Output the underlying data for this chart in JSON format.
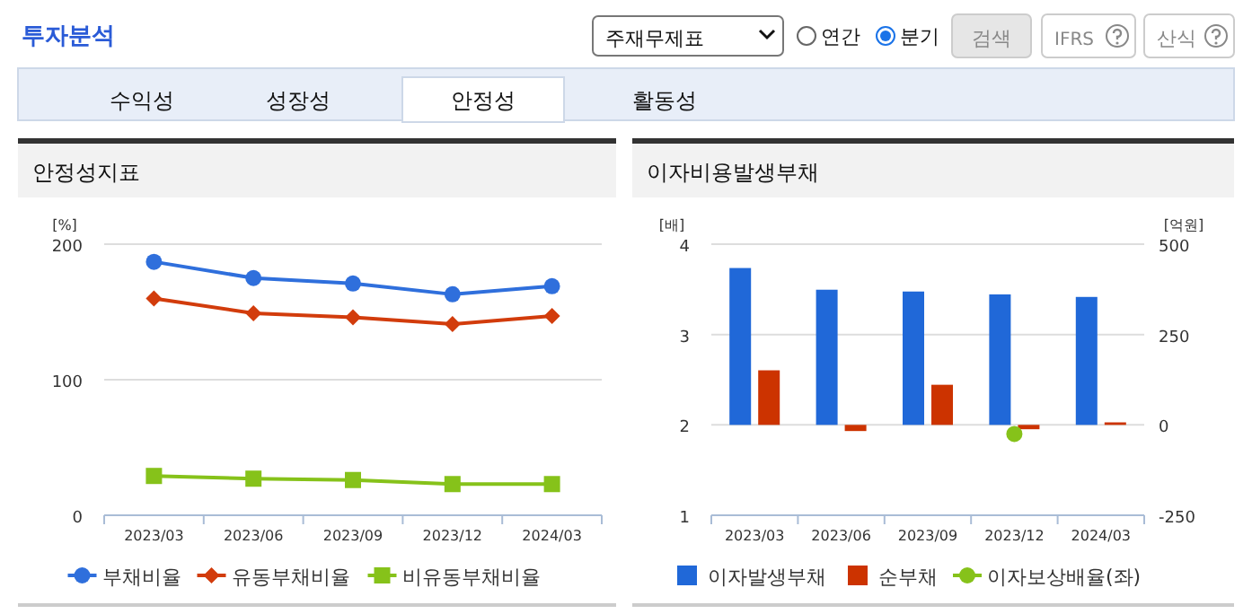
{
  "chart_data": [
    {
      "type": "other",
      "title": "투자분석",
      "annotations": [
        "주재무제표",
        "연간",
        "분기",
        "검색",
        "IFRS",
        "산식",
        "수익성",
        "성장성",
        "안정성",
        "활동성"
      ]
    },
    {
      "type": "line",
      "title": "안정성지표",
      "ylabel": "[%]",
      "categories": [
        "2023/03",
        "2023/06",
        "2023/09",
        "2023/12",
        "2024/03"
      ],
      "ylim": [
        0,
        200
      ],
      "yticks": [
        0,
        100,
        200
      ],
      "grid": "y",
      "legend": "bottom",
      "series": [
        {
          "name": "부채비율",
          "color": "#2f6fdc",
          "marker": "circle",
          "values": [
            187,
            175,
            171,
            163,
            169
          ]
        },
        {
          "name": "유동부채비율",
          "color": "#d23c0c",
          "marker": "diamond",
          "values": [
            160,
            149,
            146,
            141,
            147
          ]
        },
        {
          "name": "비유동부채비율",
          "color": "#86c21a",
          "marker": "square",
          "values": [
            29,
            27,
            26,
            23,
            23
          ]
        }
      ]
    },
    {
      "type": "bar",
      "title": "이자비용발생부채",
      "ylabel": "[배]",
      "y2label": "[억원]",
      "categories": [
        "2023/03",
        "2023/06",
        "2023/09",
        "2023/12",
        "2024/03"
      ],
      "ylim": [
        1,
        4
      ],
      "yticks": [
        1,
        2,
        3,
        4
      ],
      "y2lim": [
        -250,
        500
      ],
      "y2ticks": [
        -250,
        0,
        250,
        500
      ],
      "grid": "y",
      "legend": "bottom",
      "series": [
        {
          "name": "이자발생부채",
          "color": "#2068d8",
          "axis": "y2",
          "values": [
            434,
            374,
            369,
            361,
            354
          ]
        },
        {
          "name": "순부채",
          "color": "#cc3300",
          "axis": "y2",
          "values": [
            151,
            -17,
            111,
            -12,
            7
          ]
        },
        {
          "name": "이자보상배율(좌)",
          "type": "line",
          "marker": "circle",
          "color": "#86c21a",
          "values": [
            null,
            null,
            null,
            1.9,
            null
          ]
        }
      ]
    }
  ]
}
